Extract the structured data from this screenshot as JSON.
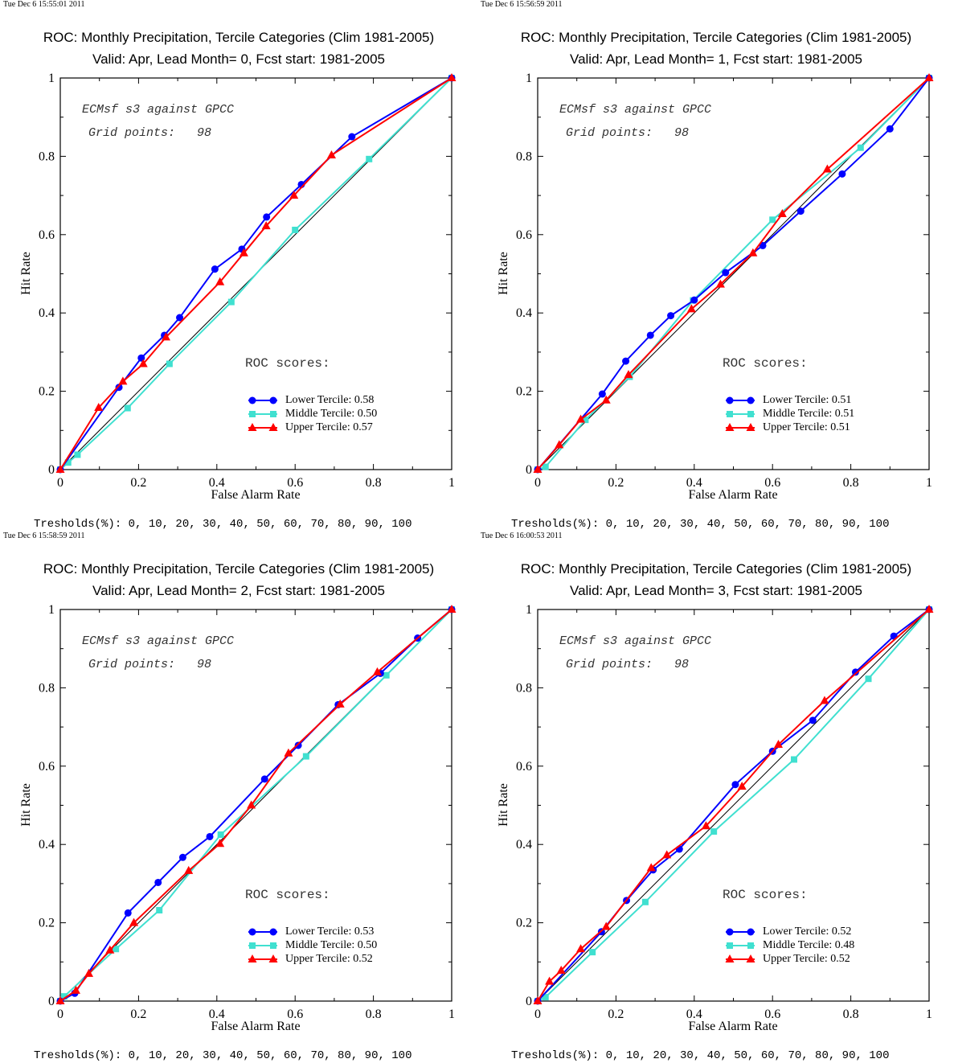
{
  "common": {
    "title_line1": "ROC: Monthly Precipitation, Tercile Categories (Clim 1981-2005)",
    "ylabel": "Hit Rate",
    "xlabel": "False Alarm Rate",
    "note1": "ECMsf s3 against GPCC",
    "note2": "Grid points:   98",
    "roc_head": "ROC scores:",
    "thresholds": "Tresholds(%): 0, 10, 20, 30, 40, 50, 60, 70, 80, 90, 100",
    "x_ticks": [
      "0",
      "0.2",
      "0.4",
      "0.6",
      "0.8",
      "1"
    ],
    "y_ticks": [
      "0",
      "0.2",
      "0.4",
      "0.6",
      "0.8",
      "1"
    ],
    "colors": {
      "lower": "#0000ff",
      "middle": "#40e0d0",
      "upper": "#ff0000",
      "diagonal": "#000000"
    }
  },
  "panels": [
    {
      "timestamp": "Tue Dec  6 15:55:01 2011",
      "title_line2": "Valid: Apr, Lead Month= 0, Fcst start: 1981-2005",
      "legend": [
        "Lower Tercile: 0.58",
        "Middle Tercile: 0.50",
        "Upper Tercile: 0.57"
      ]
    },
    {
      "timestamp": "Tue Dec  6 15:56:59 2011",
      "title_line2": "Valid: Apr, Lead Month= 1, Fcst start: 1981-2005",
      "legend": [
        "Lower Tercile: 0.51",
        "Middle Tercile: 0.51",
        "Upper Tercile: 0.51"
      ]
    },
    {
      "timestamp": "Tue Dec  6 15:58:59 2011",
      "title_line2": "Valid: Apr, Lead Month= 2, Fcst start: 1981-2005",
      "legend": [
        "Lower Tercile: 0.53",
        "Middle Tercile: 0.50",
        "Upper Tercile: 0.52"
      ]
    },
    {
      "timestamp": "Tue Dec  6 16:00:53 2011",
      "title_line2": "Valid: Apr, Lead Month= 3, Fcst start: 1981-2005",
      "legend": [
        "Lower Tercile: 0.52",
        "Middle Tercile: 0.48",
        "Upper Tercile: 0.52"
      ]
    }
  ],
  "chart_data": [
    {
      "type": "line",
      "xlabel": "False Alarm Rate",
      "ylabel": "Hit Rate",
      "xlim": [
        0,
        1
      ],
      "ylim": [
        0,
        1
      ],
      "series": [
        {
          "name": "Lower Tercile: 0.58",
          "marker": "circle",
          "x": [
            0,
            0.15,
            0.207,
            0.266,
            0.305,
            0.395,
            0.464,
            0.527,
            0.616,
            0.745,
            1
          ],
          "y": [
            0,
            0.21,
            0.285,
            0.343,
            0.388,
            0.512,
            0.563,
            0.645,
            0.728,
            0.85,
            1
          ]
        },
        {
          "name": "Middle Tercile: 0.50",
          "marker": "square",
          "x": [
            0,
            0.02,
            0.044,
            0.172,
            0.279,
            0.437,
            0.6,
            0.789,
            1
          ],
          "y": [
            0,
            0.018,
            0.038,
            0.157,
            0.27,
            0.428,
            0.612,
            0.793,
            1
          ]
        },
        {
          "name": "Upper Tercile: 0.57",
          "marker": "triangle",
          "x": [
            0,
            0.098,
            0.16,
            0.212,
            0.27,
            0.408,
            0.469,
            0.526,
            0.597,
            0.693,
            1
          ],
          "y": [
            0,
            0.158,
            0.225,
            0.27,
            0.338,
            0.479,
            0.553,
            0.622,
            0.7,
            0.803,
            1
          ]
        }
      ]
    },
    {
      "type": "line",
      "xlabel": "False Alarm Rate",
      "ylabel": "Hit Rate",
      "xlim": [
        0,
        1
      ],
      "ylim": [
        0,
        1
      ],
      "series": [
        {
          "name": "Lower Tercile: 0.51",
          "marker": "circle",
          "x": [
            0,
            0.165,
            0.225,
            0.288,
            0.34,
            0.4,
            0.48,
            0.575,
            0.672,
            0.778,
            0.9,
            1
          ],
          "y": [
            0,
            0.193,
            0.277,
            0.343,
            0.393,
            0.433,
            0.503,
            0.572,
            0.66,
            0.755,
            0.87,
            1
          ]
        },
        {
          "name": "Middle Tercile: 0.51",
          "marker": "square",
          "x": [
            0,
            0.02,
            0.122,
            0.235,
            0.397,
            0.6,
            0.825,
            1
          ],
          "y": [
            0,
            0.007,
            0.127,
            0.237,
            0.432,
            0.638,
            0.822,
            1
          ]
        },
        {
          "name": "Upper Tercile: 0.51",
          "marker": "triangle",
          "x": [
            0,
            0.055,
            0.11,
            0.175,
            0.232,
            0.393,
            0.467,
            0.55,
            0.625,
            0.74,
            1
          ],
          "y": [
            0,
            0.063,
            0.128,
            0.177,
            0.242,
            0.41,
            0.473,
            0.553,
            0.653,
            0.767,
            1
          ]
        }
      ]
    },
    {
      "type": "line",
      "xlabel": "False Alarm Rate",
      "ylabel": "Hit Rate",
      "xlim": [
        0,
        1
      ],
      "ylim": [
        0,
        1
      ],
      "series": [
        {
          "name": "Lower Tercile: 0.53",
          "marker": "circle",
          "x": [
            0,
            0.037,
            0.173,
            0.25,
            0.313,
            0.382,
            0.522,
            0.608,
            0.71,
            0.818,
            0.913,
            1
          ],
          "y": [
            0,
            0.02,
            0.225,
            0.303,
            0.367,
            0.42,
            0.567,
            0.653,
            0.757,
            0.837,
            0.927,
            1
          ]
        },
        {
          "name": "Middle Tercile: 0.50",
          "marker": "square",
          "x": [
            0,
            0.01,
            0.142,
            0.253,
            0.41,
            0.628,
            0.833,
            1
          ],
          "y": [
            0,
            0.012,
            0.133,
            0.232,
            0.425,
            0.625,
            0.832,
            1
          ]
        },
        {
          "name": "Upper Tercile: 0.52",
          "marker": "triangle",
          "x": [
            0,
            0.04,
            0.073,
            0.127,
            0.188,
            0.328,
            0.408,
            0.488,
            0.583,
            0.715,
            0.81,
            1
          ],
          "y": [
            0,
            0.027,
            0.07,
            0.13,
            0.2,
            0.333,
            0.402,
            0.5,
            0.633,
            0.758,
            0.84,
            1
          ]
        }
      ]
    },
    {
      "type": "line",
      "xlabel": "False Alarm Rate",
      "ylabel": "Hit Rate",
      "xlim": [
        0,
        1
      ],
      "ylim": [
        0,
        1
      ],
      "series": [
        {
          "name": "Lower Tercile: 0.52",
          "marker": "circle",
          "x": [
            0,
            0.163,
            0.227,
            0.295,
            0.362,
            0.505,
            0.6,
            0.703,
            0.812,
            0.91,
            1
          ],
          "y": [
            0,
            0.177,
            0.257,
            0.335,
            0.388,
            0.553,
            0.638,
            0.717,
            0.84,
            0.932,
            1
          ]
        },
        {
          "name": "Middle Tercile: 0.48",
          "marker": "square",
          "x": [
            0,
            0.02,
            0.14,
            0.275,
            0.45,
            0.655,
            0.845,
            1
          ],
          "y": [
            0,
            0.01,
            0.125,
            0.253,
            0.433,
            0.617,
            0.823,
            1
          ]
        },
        {
          "name": "Upper Tercile: 0.52",
          "marker": "triangle",
          "x": [
            0,
            0.03,
            0.06,
            0.11,
            0.175,
            0.29,
            0.33,
            0.43,
            0.522,
            0.615,
            0.733,
            1
          ],
          "y": [
            0,
            0.05,
            0.078,
            0.133,
            0.19,
            0.34,
            0.373,
            0.447,
            0.548,
            0.655,
            0.767,
            1
          ]
        }
      ]
    }
  ]
}
